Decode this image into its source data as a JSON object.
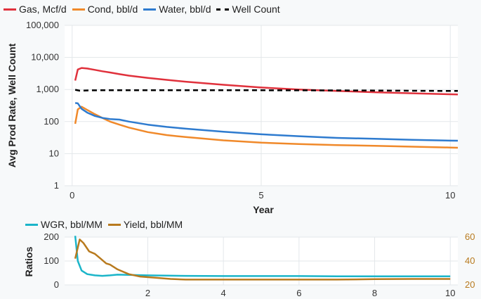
{
  "main_chart": {
    "type": "line",
    "ylabel": "Avg Prod Rate, Well Count",
    "xlabel": "Year",
    "x_ticks": [
      "0",
      "5",
      "10"
    ],
    "y_ticks": [
      "1",
      "10",
      "100",
      "1,000",
      "10,000",
      "100,000"
    ],
    "legend": [
      {
        "label": "Gas, Mcf/d",
        "color": "#e0313c",
        "dash": false
      },
      {
        "label": "Cond, bbl/d",
        "color": "#f0892a",
        "dash": false
      },
      {
        "label": "Water, bbl/d",
        "color": "#2e7bcf",
        "dash": false
      },
      {
        "label": "Well Count",
        "color": "#000000",
        "dash": true
      }
    ]
  },
  "ratio_chart": {
    "type": "line",
    "ylabel": "Ratios",
    "x_ticks": [
      "2",
      "4",
      "6",
      "8",
      "10"
    ],
    "y_left_ticks": [
      "200",
      "100",
      "0"
    ],
    "y_right_ticks": [
      "60",
      "40",
      "20"
    ],
    "legend": [
      {
        "label": "WGR, bbl/MM",
        "color": "#1bb5c9"
      },
      {
        "label": "Yield, bbl/MM",
        "color": "#b87a1e"
      }
    ]
  },
  "chart_data": [
    {
      "type": "line",
      "title": "",
      "xlabel": "Year",
      "ylabel": "Avg Prod Rate, Well Count",
      "xlim": [
        -0.2,
        10.2
      ],
      "ylim": [
        1,
        100000
      ],
      "yscale": "log",
      "grid": true,
      "legend_placement": "top",
      "series": [
        {
          "name": "Gas, Mcf/d",
          "color": "#e0313c",
          "x": [
            0.08,
            0.15,
            0.25,
            0.4,
            0.6,
            0.8,
            1.0,
            1.25,
            1.5,
            2.0,
            2.5,
            3.0,
            4.0,
            5.0,
            6.0,
            7.0,
            8.0,
            9.0,
            10.0,
            10.2
          ],
          "y": [
            1900,
            4200,
            4700,
            4500,
            4100,
            3700,
            3400,
            3000,
            2700,
            2300,
            2000,
            1750,
            1400,
            1150,
            1000,
            900,
            820,
            760,
            710,
            700
          ]
        },
        {
          "name": "Cond, bbl/d",
          "color": "#f0892a",
          "x": [
            0.08,
            0.15,
            0.25,
            0.4,
            0.6,
            0.8,
            1.0,
            1.25,
            1.5,
            2.0,
            2.5,
            3.0,
            4.0,
            5.0,
            6.0,
            7.0,
            8.0,
            9.0,
            10.0,
            10.2
          ],
          "y": [
            85,
            240,
            290,
            230,
            170,
            130,
            100,
            80,
            65,
            47,
            38,
            33,
            26,
            22,
            20,
            18.5,
            17.5,
            16.5,
            15.5,
            15.3
          ]
        },
        {
          "name": "Water, bbl/d",
          "color": "#2e7bcf",
          "x": [
            0.08,
            0.15,
            0.25,
            0.4,
            0.6,
            0.8,
            1.0,
            1.25,
            1.5,
            2.0,
            2.5,
            3.0,
            4.0,
            5.0,
            6.0,
            7.0,
            8.0,
            9.0,
            10.0,
            10.2
          ],
          "y": [
            380,
            370,
            250,
            190,
            150,
            130,
            120,
            115,
            100,
            80,
            68,
            60,
            48,
            40,
            35,
            31,
            29,
            27,
            25.5,
            25.3
          ]
        },
        {
          "name": "Well Count",
          "color": "#000000",
          "dash": true,
          "x": [
            0.08,
            0.2,
            0.5,
            1.0,
            2.0,
            3.0,
            4.0,
            5.0,
            6.0,
            7.0,
            8.0,
            9.0,
            10.0,
            10.2
          ],
          "y": [
            980,
            920,
            940,
            950,
            950,
            950,
            950,
            945,
            940,
            935,
            925,
            915,
            900,
            900
          ]
        }
      ]
    },
    {
      "type": "line",
      "title": "",
      "ylabel": "Ratios",
      "xlim": [
        -0.2,
        10.2
      ],
      "ylim_left": [
        0,
        200
      ],
      "ylim_right": [
        20,
        60
      ],
      "grid": true,
      "legend_placement": "top",
      "series": [
        {
          "name": "WGR, bbl/MM",
          "color": "#1bb5c9",
          "axis": "left",
          "x": [
            0.08,
            0.15,
            0.25,
            0.4,
            0.6,
            0.8,
            1.0,
            1.2,
            1.5,
            2.0,
            3.0,
            4.0,
            5.0,
            6.0,
            7.0,
            8.0,
            9.0,
            10.0
          ],
          "y": [
            205,
            100,
            60,
            45,
            40,
            38,
            40,
            43,
            42,
            40,
            38,
            37,
            37,
            37,
            36,
            36,
            36,
            36
          ]
        },
        {
          "name": "Yield, bbl/MM",
          "color": "#b87a1e",
          "axis": "right",
          "x": [
            0.08,
            0.2,
            0.3,
            0.45,
            0.6,
            0.75,
            0.9,
            1.0,
            1.2,
            1.5,
            1.8,
            2.2,
            2.6,
            3.0,
            4.0,
            5.0,
            6.0,
            7.0,
            8.0,
            9.0,
            10.0
          ],
          "y": [
            42,
            58,
            55,
            48,
            46,
            42,
            38,
            37,
            33,
            29,
            27,
            26,
            25,
            24.5,
            24.5,
            24.5,
            24.5,
            24.5,
            24.8,
            25,
            25
          ]
        }
      ]
    }
  ]
}
